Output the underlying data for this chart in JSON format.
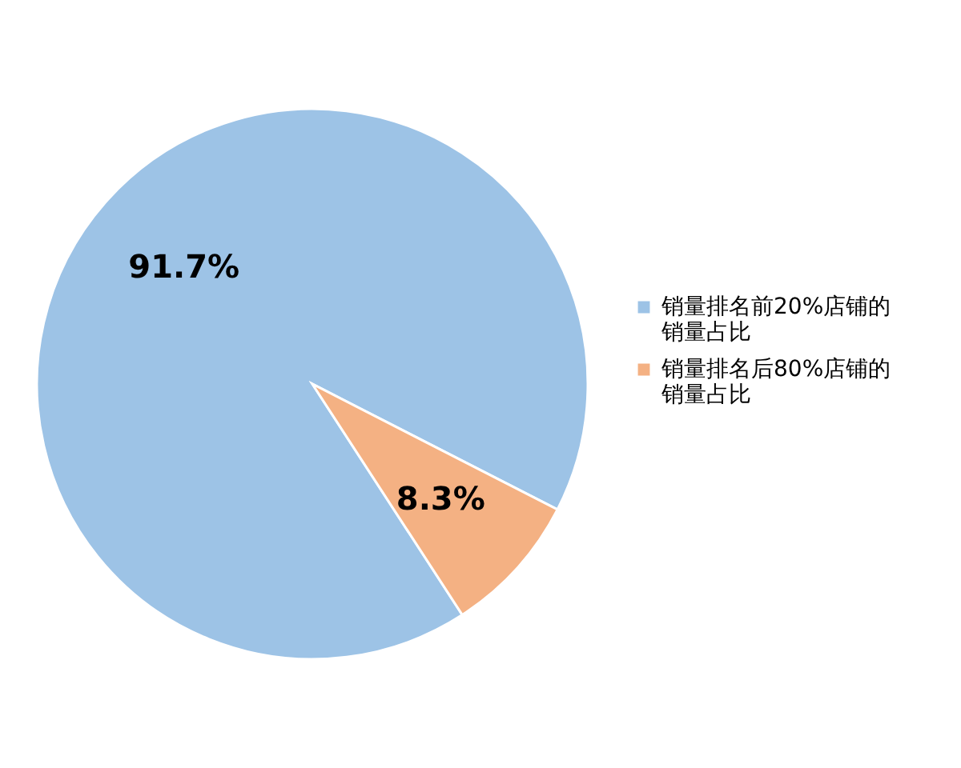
{
  "chart_data": {
    "type": "pie",
    "categories": [
      "销量排名前20%店铺的销量占比",
      "销量排名后80%店铺的销量占比"
    ],
    "values": [
      91.7,
      8.3
    ],
    "colors": [
      "#9dc3e6",
      "#f4b183"
    ],
    "value_labels": [
      "91.7%",
      "8.3%"
    ],
    "legend": "right"
  }
}
